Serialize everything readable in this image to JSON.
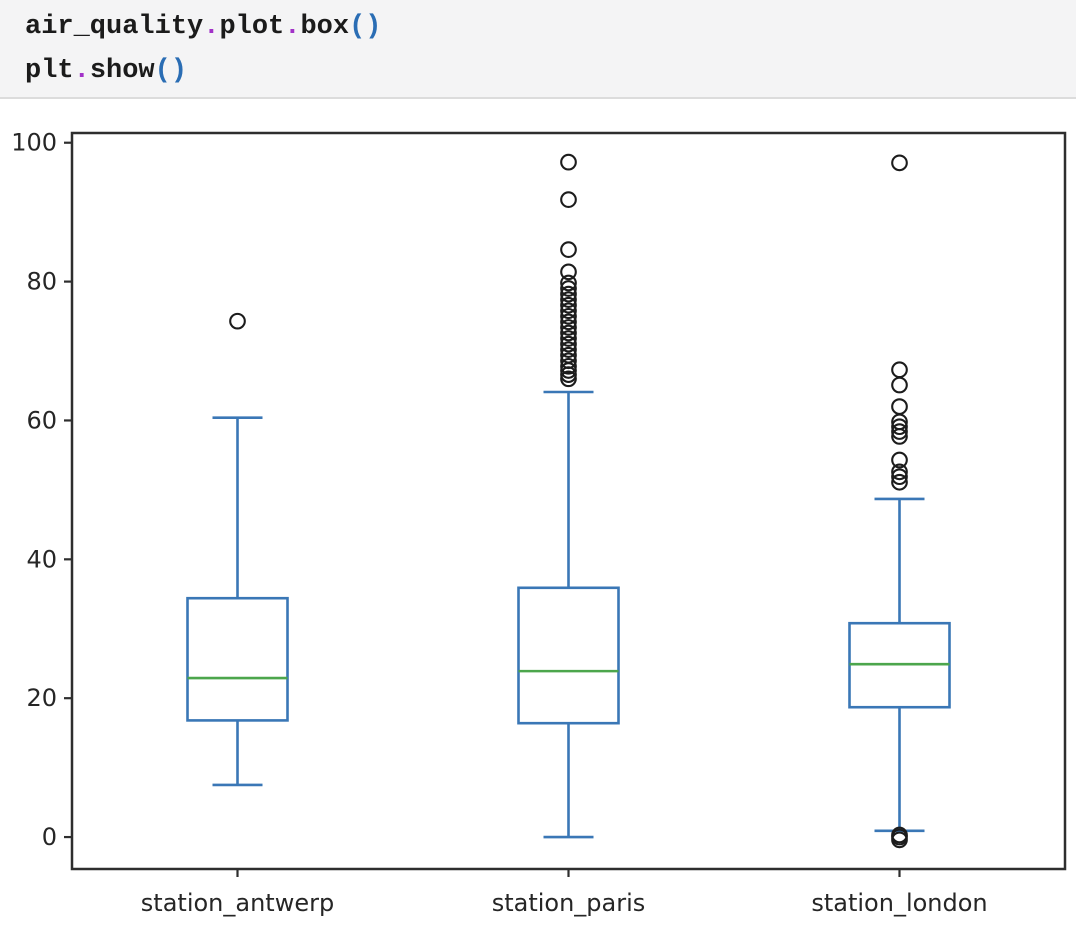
{
  "code_cell": {
    "background": "#f4f4f5",
    "border": "#dcdcdc",
    "token_colors": {
      "n": "#1b1b1b",
      "o": "#a232c8",
      "p": "#2a6db4"
    },
    "lines": [
      [
        [
          "air_quality",
          "n"
        ],
        [
          ".",
          "o"
        ],
        [
          "plot",
          "n"
        ],
        [
          ".",
          "o"
        ],
        [
          "box",
          "n"
        ],
        [
          "(",
          "p"
        ],
        [
          ")",
          "p"
        ]
      ],
      [
        [
          "plt",
          "n"
        ],
        [
          ".",
          "o"
        ],
        [
          "show",
          "n"
        ],
        [
          "(",
          "p"
        ],
        [
          ")",
          "p"
        ]
      ]
    ],
    "plain_text": [
      "air_quality.plot.box()",
      "plt.show()"
    ]
  },
  "chart_data": {
    "type": "box",
    "title": "",
    "xlabel": "",
    "ylabel": "",
    "grid": false,
    "legend": false,
    "categories": [
      "station_antwerp",
      "station_paris",
      "station_london"
    ],
    "yticks": [
      0,
      20,
      40,
      60,
      80,
      100
    ],
    "ylim": [
      -4.6,
      101.4
    ],
    "series": [
      {
        "name": "station_antwerp",
        "whisker_low": 7.5,
        "q1": 16.8,
        "median": 22.9,
        "q3": 34.4,
        "whisker_high": 60.4,
        "outliers": [
          74.3
        ]
      },
      {
        "name": "station_paris",
        "whisker_low": 0.0,
        "q1": 16.4,
        "median": 23.9,
        "q3": 35.9,
        "whisker_high": 64.1,
        "outliers": [
          97.2,
          91.8,
          84.6,
          81.4,
          79.8,
          79.0,
          78.2,
          77.4,
          76.6,
          75.8,
          75.0,
          74.2,
          73.4,
          72.6,
          71.8,
          71.0,
          70.2,
          69.4,
          68.6,
          67.8,
          67.2,
          66.6,
          66.0
        ]
      },
      {
        "name": "station_london",
        "whisker_low": 0.9,
        "q1": 18.7,
        "median": 24.9,
        "q3": 30.8,
        "whisker_high": 48.7,
        "outliers": [
          97.1,
          67.3,
          65.1,
          62.0,
          59.8,
          59.1,
          58.4,
          57.7,
          54.3,
          52.6,
          51.9,
          51.1,
          0.3,
          0.0,
          -0.4
        ]
      }
    ],
    "colors": {
      "box": "#3a77b6",
      "whisker": "#3a77b6",
      "cap": "#3a77b6",
      "median": "#4ca64c",
      "flier_edge": "#1c1c1c",
      "spine": "#2e2e2e",
      "tick_label": "#262626",
      "plot_background": "#ffffff"
    }
  }
}
